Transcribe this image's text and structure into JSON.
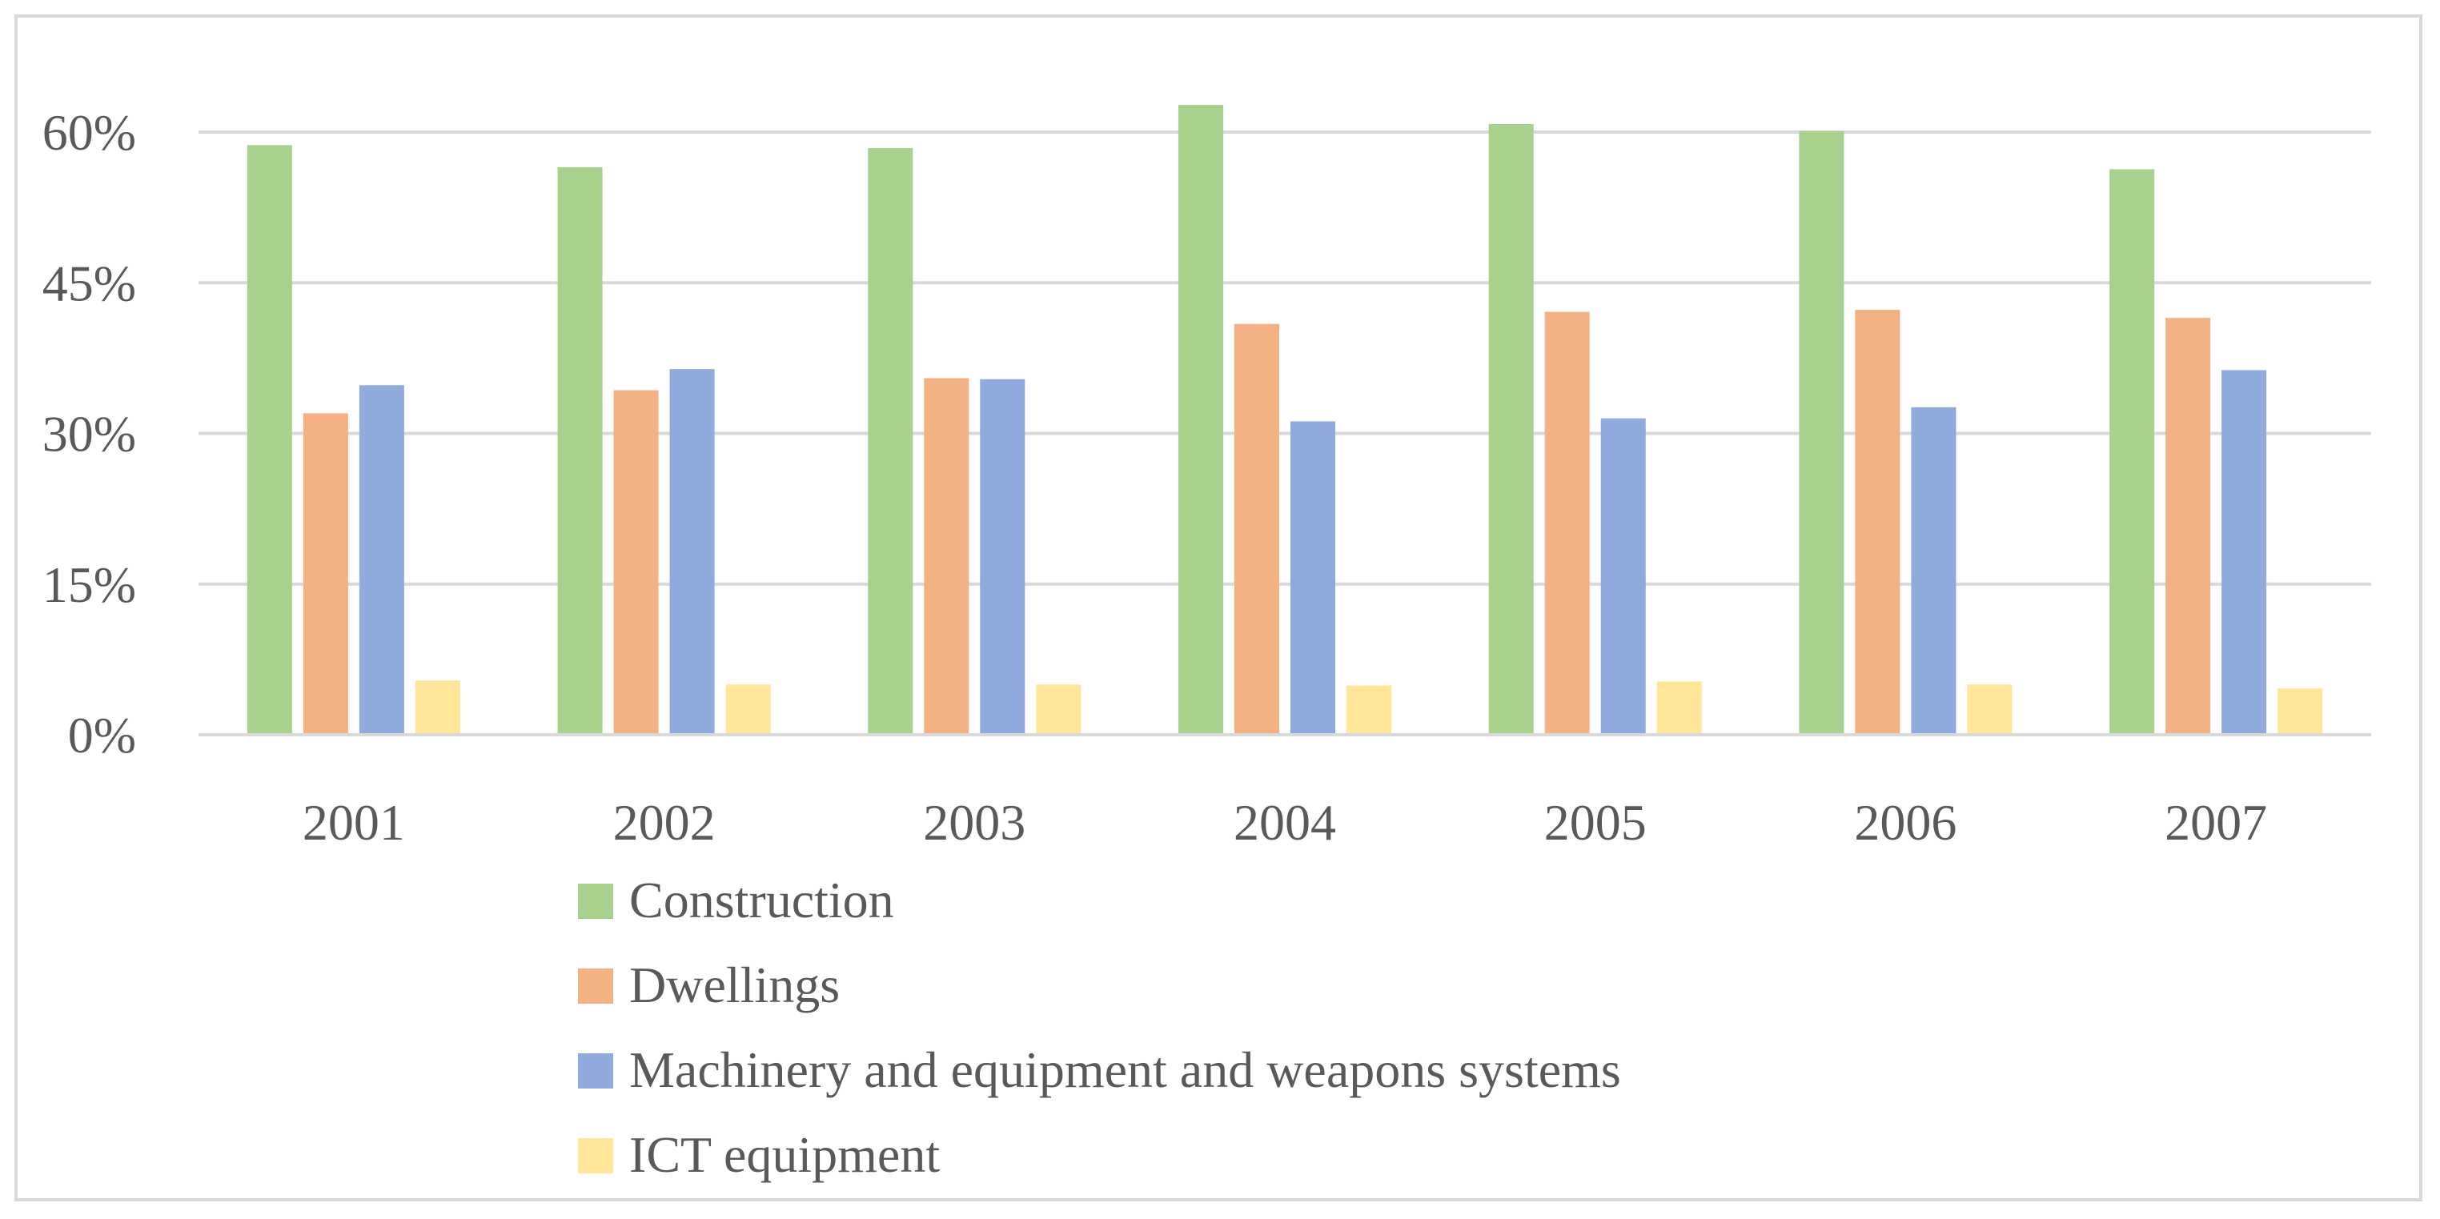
{
  "chart_data": {
    "type": "bar",
    "title": "",
    "xlabel": "",
    "ylabel": "",
    "ylim": [
      0,
      65
    ],
    "yticks": [
      0,
      15,
      30,
      45,
      60
    ],
    "ytick_labels": [
      "0%",
      "15%",
      "30%",
      "45%",
      "60%"
    ],
    "grid": true,
    "legend_position": "bottom",
    "categories": [
      "2001",
      "2002",
      "2003",
      "2004",
      "2005",
      "2006",
      "2007"
    ],
    "series": [
      {
        "name": "Construction",
        "color": "#a9d18e",
        "values": [
          58.7,
          56.5,
          58.4,
          62.7,
          60.8,
          60.1,
          56.3
        ]
      },
      {
        "name": "Dwellings",
        "color": "#f4b183",
        "values": [
          32.0,
          34.3,
          35.5,
          40.9,
          42.1,
          42.3,
          41.5
        ]
      },
      {
        "name": "Machinery and equipment and weapons systems",
        "color": "#8faadc",
        "values": [
          34.8,
          36.4,
          35.4,
          31.2,
          31.5,
          32.6,
          36.3
        ]
      },
      {
        "name": "ICT equipment",
        "color": "#ffe699",
        "values": [
          5.4,
          5.0,
          5.0,
          4.9,
          5.3,
          5.0,
          4.6
        ]
      }
    ]
  }
}
